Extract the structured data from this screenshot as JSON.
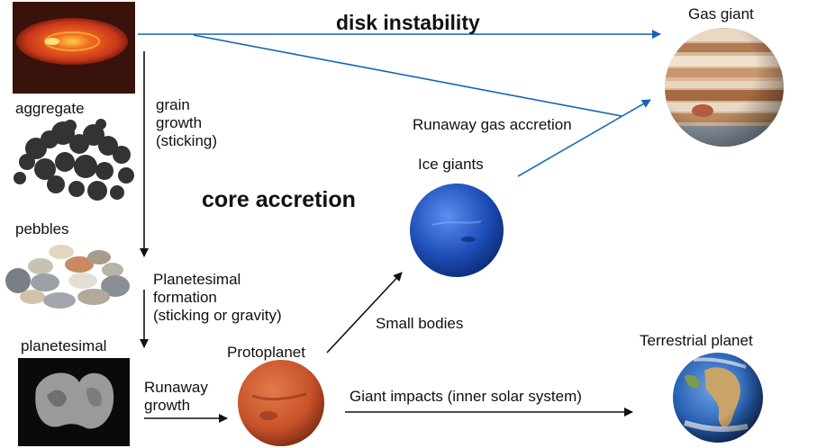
{
  "diagram": {
    "titles": {
      "disk_instability": "disk instability",
      "core_accretion": "core accretion"
    },
    "stages": {
      "aggregate": "aggregate",
      "pebbles": "pebbles",
      "planetesimal": "planetesimal",
      "protoplanet": "Protoplanet",
      "ice_giants": "Ice giants",
      "gas_giant": "Gas giant",
      "terrestrial_planet": "Terrestrial planet"
    },
    "processes": {
      "grain_growth": "grain\ngrowth\n(sticking)",
      "planetesimal_formation": "Planetesimal\nformation\n(sticking or gravity)",
      "runaway_growth": "Runaway\ngrowth",
      "small_bodies": "Small bodies",
      "runaway_gas_accretion": "Runaway gas accretion",
      "giant_impacts": "Giant impacts (inner solar system)"
    },
    "colors": {
      "disk_arrow": "#1464b4",
      "black_arrow": "#111111",
      "ice_giant": "#1f4fb8",
      "gas_giant_band": "#c9986a",
      "protoplanet": "#c8522a",
      "earth_ocean": "#2a63b4",
      "disk": "#c7361a"
    }
  }
}
